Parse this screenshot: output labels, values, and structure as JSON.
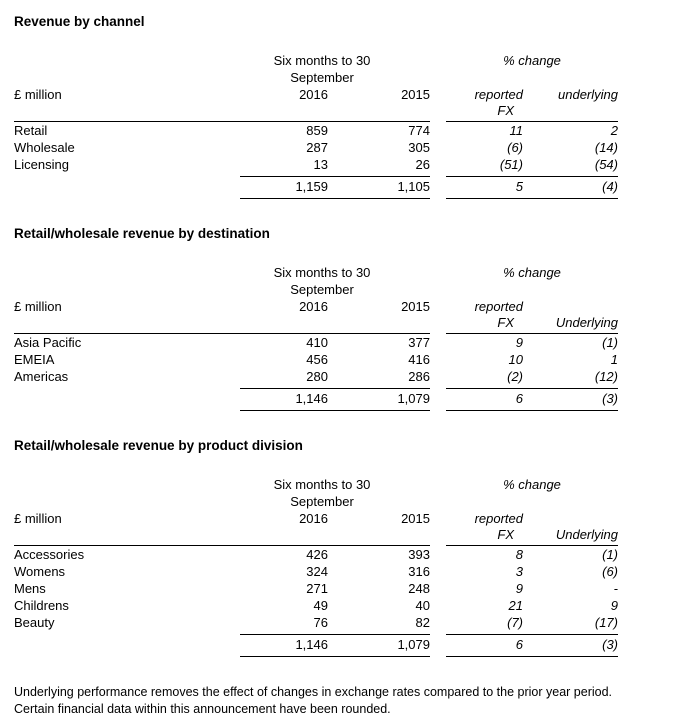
{
  "tables": [
    {
      "title": "Revenue by channel",
      "period_line1": "Six months to 30",
      "period_line2": "September",
      "change_header": "% change",
      "unit_label": "£ million",
      "year1": "2016",
      "year2": "2015",
      "reported_label": "reported",
      "fx_label": "FX",
      "underlying_label": "underlying",
      "rows": [
        {
          "label": "Retail",
          "y2016": "859",
          "y2015": "774",
          "reported": "11",
          "underlying": "2"
        },
        {
          "label": "Wholesale",
          "y2016": "287",
          "y2015": "305",
          "reported": "(6)",
          "underlying": "(14)"
        },
        {
          "label": "Licensing",
          "y2016": "13",
          "y2015": "26",
          "reported": "(51)",
          "underlying": "(54)"
        }
      ],
      "total": {
        "y2016": "1,159",
        "y2015": "1,105",
        "reported": "5",
        "underlying": "(4)"
      }
    },
    {
      "title": "Retail/wholesale revenue by destination",
      "period_line1": "Six months to 30",
      "period_line2": "September",
      "change_header": "% change",
      "unit_label": "£ million",
      "year1": "2016",
      "year2": "2015",
      "reported_label": "reported",
      "fx_label": "FX",
      "underlying_label": "Underlying",
      "rows": [
        {
          "label": "Asia Pacific",
          "y2016": "410",
          "y2015": "377",
          "reported": "9",
          "underlying": "(1)"
        },
        {
          "label": "EMEIA",
          "y2016": "456",
          "y2015": "416",
          "reported": "10",
          "underlying": "1"
        },
        {
          "label": "Americas",
          "y2016": "280",
          "y2015": "286",
          "reported": "(2)",
          "underlying": "(12)"
        }
      ],
      "total": {
        "y2016": "1,146",
        "y2015": "1,079",
        "reported": "6",
        "underlying": "(3)"
      }
    },
    {
      "title": "Retail/wholesale revenue by product division",
      "period_line1": "Six months to 30",
      "period_line2": "September",
      "change_header": "% change",
      "unit_label": "£ million",
      "year1": "2016",
      "year2": "2015",
      "reported_label": "reported",
      "fx_label": "FX",
      "underlying_label": "Underlying",
      "rows": [
        {
          "label": "Accessories",
          "y2016": "426",
          "y2015": "393",
          "reported": "8",
          "underlying": "(1)"
        },
        {
          "label": "Womens",
          "y2016": "324",
          "y2015": "316",
          "reported": "3",
          "underlying": "(6)"
        },
        {
          "label": "Mens",
          "y2016": "271",
          "y2015": "248",
          "reported": "9",
          "underlying": "-"
        },
        {
          "label": "Childrens",
          "y2016": "49",
          "y2015": "40",
          "reported": "21",
          "underlying": "9"
        },
        {
          "label": "Beauty",
          "y2016": "76",
          "y2015": "82",
          "reported": "(7)",
          "underlying": "(17)"
        }
      ],
      "total": {
        "y2016": "1,146",
        "y2015": "1,079",
        "reported": "6",
        "underlying": "(3)"
      }
    }
  ],
  "footnotes": {
    "line1": "Underlying performance removes the effect of changes in exchange rates compared to the prior year period.",
    "line2": "Certain financial data within this announcement have been rounded."
  }
}
